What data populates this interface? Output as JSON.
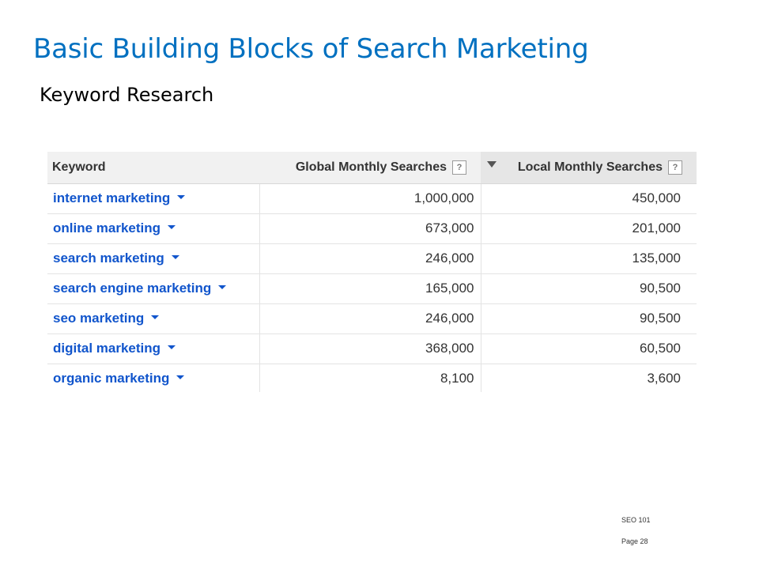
{
  "slide": {
    "title": "Basic Building Blocks of Search Marketing",
    "subtitle": "Keyword Research"
  },
  "table": {
    "headers": {
      "keyword": "Keyword",
      "global": "Global Monthly Searches",
      "local": "Local Monthly Searches",
      "help_symbol": "?"
    },
    "sorted_column": "local",
    "sort_direction": "descending",
    "rows": [
      {
        "keyword": "internet marketing",
        "global": "1,000,000",
        "local": "450,000"
      },
      {
        "keyword": "online marketing",
        "global": "673,000",
        "local": "201,000"
      },
      {
        "keyword": "search marketing",
        "global": "246,000",
        "local": "135,000"
      },
      {
        "keyword": "search engine marketing",
        "global": "165,000",
        "local": "90,500"
      },
      {
        "keyword": "seo marketing",
        "global": "246,000",
        "local": "90,500"
      },
      {
        "keyword": "digital marketing",
        "global": "368,000",
        "local": "60,500"
      },
      {
        "keyword": "organic marketing",
        "global": "8,100",
        "local": "3,600"
      }
    ]
  },
  "footer": {
    "course": "SEO 101",
    "page": "Page 28"
  },
  "colors": {
    "title": "#0070c0",
    "keyword_link": "#1155cc",
    "header_bg": "#f1f1f1"
  }
}
